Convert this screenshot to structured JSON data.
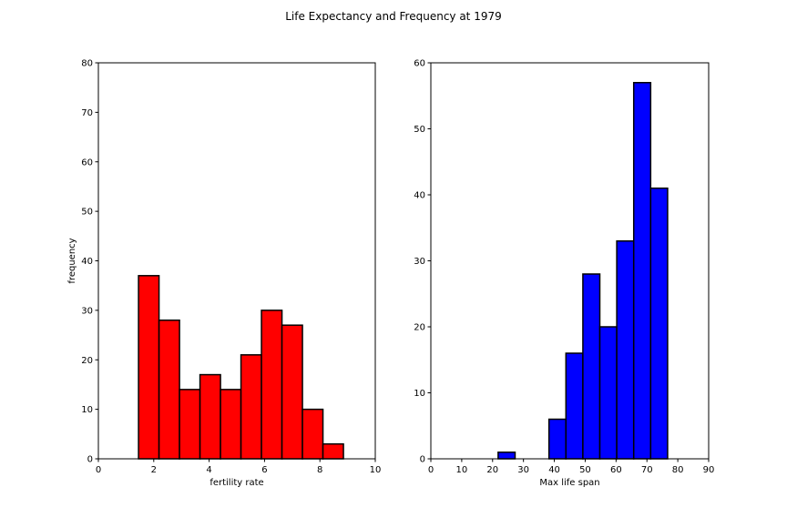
{
  "title": "Life Expectancy and Frequency at 1979",
  "chart_data": [
    {
      "type": "histogram",
      "xlabel": "fertility rate",
      "ylabel": "frequency",
      "color": "#ff0000",
      "bins": [
        1.45,
        2.19,
        2.93,
        3.67,
        4.41,
        5.15,
        5.89,
        6.63,
        7.37,
        8.11,
        8.85
      ],
      "values": [
        37,
        28,
        14,
        17,
        14,
        21,
        30,
        27,
        10,
        3
      ],
      "xlim": [
        0,
        10
      ],
      "xticks": [
        0,
        2,
        4,
        6,
        8,
        10
      ],
      "ylim": [
        0,
        80
      ],
      "yticks": [
        0,
        10,
        20,
        30,
        40,
        50,
        60,
        70,
        80
      ]
    },
    {
      "type": "histogram",
      "xlabel": "Max life span",
      "color": "#0000ff",
      "bins": [
        21.8,
        27.29,
        32.78,
        38.27,
        43.76,
        49.25,
        54.74,
        60.23,
        65.72,
        71.21,
        76.7
      ],
      "values": [
        1,
        0,
        0,
        6,
        16,
        28,
        20,
        33,
        57,
        41
      ],
      "xlim": [
        0,
        90
      ],
      "xticks": [
        0,
        10,
        20,
        30,
        40,
        50,
        60,
        70,
        80,
        90
      ],
      "ylim": [
        0,
        60
      ],
      "yticks": [
        0,
        10,
        20,
        30,
        40,
        50,
        60
      ]
    }
  ]
}
